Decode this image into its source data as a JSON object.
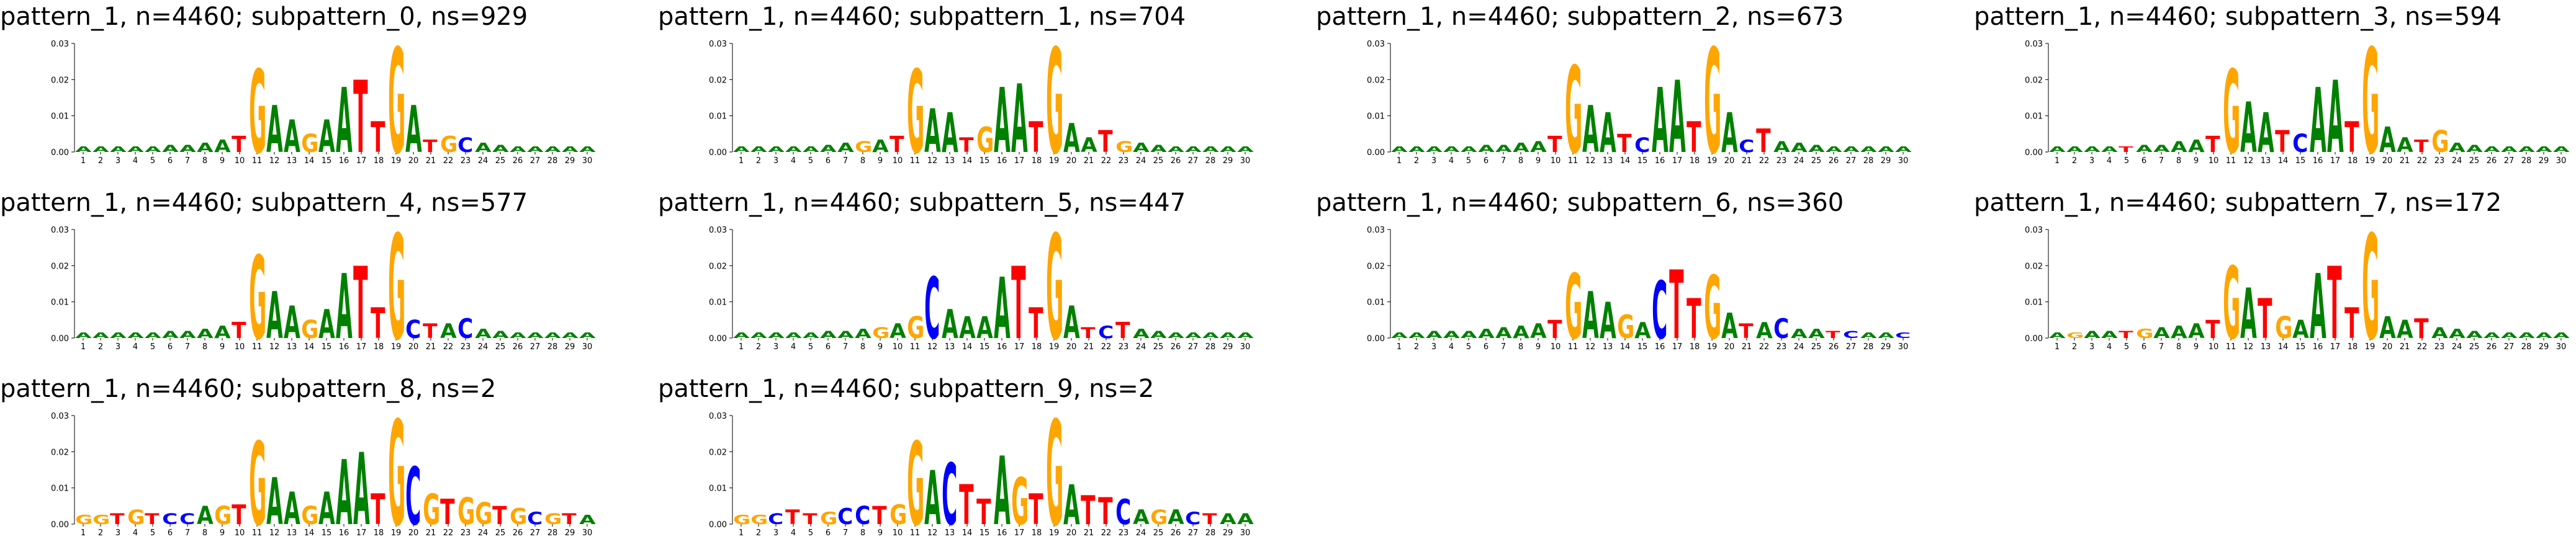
{
  "figure": {
    "colors": {
      "A": "#008000",
      "C": "#0000ff",
      "G": "#ffa500",
      "T": "#ff0000",
      "axis": "#000000"
    }
  },
  "chart_data": [
    {
      "type": "sequence-logo",
      "title": "pattern_1, n=4460; subpattern_0, ns=929",
      "x": [
        1,
        2,
        3,
        4,
        5,
        6,
        7,
        8,
        9,
        10,
        11,
        12,
        13,
        14,
        15,
        16,
        17,
        18,
        19,
        20,
        21,
        22,
        23,
        24,
        25,
        26,
        27,
        28,
        29,
        30
      ],
      "ylim": [
        0,
        0.03
      ],
      "yticks": [
        "0.00",
        "0.01",
        "0.02",
        "0.03"
      ],
      "letters": [
        "A",
        "A",
        "A",
        "A",
        "A",
        "A",
        "A",
        "A",
        "A",
        "T",
        "G",
        "A",
        "A",
        "G",
        "A",
        "A",
        "T",
        "T",
        "G",
        "A",
        "T",
        "G",
        "C",
        "A",
        "A",
        "A",
        "A",
        "A",
        "A",
        "A"
      ],
      "heights": [
        0.0015,
        0.0015,
        0.0015,
        0.0015,
        0.0015,
        0.002,
        0.002,
        0.0025,
        0.0035,
        0.0045,
        0.023,
        0.013,
        0.009,
        0.005,
        0.009,
        0.018,
        0.02,
        0.0085,
        0.029,
        0.013,
        0.0035,
        0.0045,
        0.004,
        0.0025,
        0.002,
        0.0015,
        0.0015,
        0.0015,
        0.0015,
        0.0015
      ]
    },
    {
      "type": "sequence-logo",
      "title": "pattern_1, n=4460; subpattern_1, ns=704",
      "x": [
        1,
        2,
        3,
        4,
        5,
        6,
        7,
        8,
        9,
        10,
        11,
        12,
        13,
        14,
        15,
        16,
        17,
        18,
        19,
        20,
        21,
        22,
        23,
        24,
        25,
        26,
        27,
        28,
        29,
        30
      ],
      "ylim": [
        0,
        0.03
      ],
      "yticks": [
        "0.00",
        "0.01",
        "0.02",
        "0.03"
      ],
      "letters": [
        "A",
        "A",
        "A",
        "A",
        "A",
        "A",
        "A",
        "G",
        "A",
        "T",
        "G",
        "A",
        "A",
        "T",
        "G",
        "A",
        "A",
        "T",
        "G",
        "A",
        "A",
        "T",
        "G",
        "A",
        "A",
        "A",
        "A",
        "A",
        "A",
        "A"
      ],
      "heights": [
        0.0015,
        0.0015,
        0.0015,
        0.0015,
        0.0015,
        0.002,
        0.0025,
        0.003,
        0.0035,
        0.0045,
        0.023,
        0.012,
        0.011,
        0.004,
        0.007,
        0.018,
        0.019,
        0.0085,
        0.029,
        0.008,
        0.004,
        0.006,
        0.003,
        0.0025,
        0.002,
        0.0015,
        0.0015,
        0.0015,
        0.0015,
        0.0015
      ]
    },
    {
      "type": "sequence-logo",
      "title": "pattern_1, n=4460; subpattern_2, ns=673",
      "x": [
        1,
        2,
        3,
        4,
        5,
        6,
        7,
        8,
        9,
        10,
        11,
        12,
        13,
        14,
        15,
        16,
        17,
        18,
        19,
        20,
        21,
        22,
        23,
        24,
        25,
        26,
        27,
        28,
        29,
        30
      ],
      "ylim": [
        0,
        0.03
      ],
      "yticks": [
        "0.00",
        "0.01",
        "0.02",
        "0.03"
      ],
      "letters": [
        "A",
        "A",
        "A",
        "A",
        "A",
        "A",
        "A",
        "A",
        "A",
        "T",
        "G",
        "A",
        "A",
        "T",
        "C",
        "A",
        "A",
        "T",
        "G",
        "A",
        "C",
        "T",
        "A",
        "A",
        "A",
        "A",
        "A",
        "A",
        "A",
        "A"
      ],
      "heights": [
        0.0015,
        0.0015,
        0.0015,
        0.0015,
        0.0015,
        0.002,
        0.002,
        0.0025,
        0.003,
        0.0045,
        0.024,
        0.013,
        0.011,
        0.005,
        0.004,
        0.018,
        0.02,
        0.0085,
        0.029,
        0.011,
        0.0035,
        0.0065,
        0.003,
        0.0025,
        0.002,
        0.0015,
        0.0015,
        0.0015,
        0.0015,
        0.0015
      ]
    },
    {
      "type": "sequence-logo",
      "title": "pattern_1, n=4460; subpattern_3, ns=594",
      "x": [
        1,
        2,
        3,
        4,
        5,
        6,
        7,
        8,
        9,
        10,
        11,
        12,
        13,
        14,
        15,
        16,
        17,
        18,
        19,
        20,
        21,
        22,
        23,
        24,
        25,
        26,
        27,
        28,
        29,
        30
      ],
      "ylim": [
        0,
        0.03
      ],
      "yticks": [
        "0.00",
        "0.01",
        "0.02",
        "0.03"
      ],
      "letters": [
        "A",
        "A",
        "A",
        "A",
        "T",
        "A",
        "A",
        "A",
        "A",
        "T",
        "G",
        "A",
        "A",
        "T",
        "C",
        "A",
        "A",
        "T",
        "G",
        "A",
        "A",
        "T",
        "G",
        "A",
        "A",
        "A",
        "A",
        "A",
        "A",
        "A"
      ],
      "heights": [
        0.0015,
        0.0015,
        0.0015,
        0.0015,
        0.0015,
        0.002,
        0.002,
        0.003,
        0.0035,
        0.0045,
        0.023,
        0.014,
        0.011,
        0.006,
        0.005,
        0.018,
        0.02,
        0.0085,
        0.029,
        0.007,
        0.004,
        0.0035,
        0.006,
        0.0025,
        0.002,
        0.0015,
        0.0015,
        0.0015,
        0.0015,
        0.0015
      ]
    },
    {
      "type": "sequence-logo",
      "title": "pattern_1, n=4460; subpattern_4, ns=577",
      "x": [
        1,
        2,
        3,
        4,
        5,
        6,
        7,
        8,
        9,
        10,
        11,
        12,
        13,
        14,
        15,
        16,
        17,
        18,
        19,
        20,
        21,
        22,
        23,
        24,
        25,
        26,
        27,
        28,
        29,
        30
      ],
      "ylim": [
        0,
        0.03
      ],
      "yticks": [
        "0.00",
        "0.01",
        "0.02",
        "0.03"
      ],
      "letters": [
        "A",
        "A",
        "A",
        "A",
        "A",
        "A",
        "A",
        "A",
        "A",
        "T",
        "G",
        "A",
        "A",
        "G",
        "A",
        "A",
        "T",
        "T",
        "G",
        "C",
        "T",
        "A",
        "C",
        "A",
        "A",
        "A",
        "A",
        "A",
        "A",
        "A"
      ],
      "heights": [
        0.0015,
        0.0015,
        0.0015,
        0.0015,
        0.0015,
        0.002,
        0.002,
        0.0025,
        0.0035,
        0.0045,
        0.023,
        0.013,
        0.009,
        0.005,
        0.008,
        0.018,
        0.02,
        0.0085,
        0.029,
        0.005,
        0.004,
        0.004,
        0.0055,
        0.0025,
        0.002,
        0.0015,
        0.0015,
        0.0015,
        0.0015,
        0.0015
      ]
    },
    {
      "type": "sequence-logo",
      "title": "pattern_1, n=4460; subpattern_5, ns=447",
      "x": [
        1,
        2,
        3,
        4,
        5,
        6,
        7,
        8,
        9,
        10,
        11,
        12,
        13,
        14,
        15,
        16,
        17,
        18,
        19,
        20,
        21,
        22,
        23,
        24,
        25,
        26,
        27,
        28,
        29,
        30
      ],
      "ylim": [
        0,
        0.03
      ],
      "yticks": [
        "0.00",
        "0.01",
        "0.02",
        "0.03"
      ],
      "letters": [
        "A",
        "A",
        "A",
        "A",
        "A",
        "A",
        "A",
        "A",
        "G",
        "A",
        "G",
        "C",
        "A",
        "A",
        "A",
        "A",
        "T",
        "T",
        "G",
        "A",
        "T",
        "C",
        "T",
        "A",
        "A",
        "A",
        "A",
        "A",
        "A",
        "A"
      ],
      "heights": [
        0.0015,
        0.0015,
        0.0015,
        0.0015,
        0.0015,
        0.002,
        0.002,
        0.0025,
        0.003,
        0.004,
        0.006,
        0.017,
        0.008,
        0.006,
        0.006,
        0.017,
        0.02,
        0.0085,
        0.029,
        0.009,
        0.003,
        0.0035,
        0.0045,
        0.0025,
        0.002,
        0.0015,
        0.0015,
        0.0015,
        0.0015,
        0.0015
      ]
    },
    {
      "type": "sequence-logo",
      "title": "pattern_1, n=4460; subpattern_6, ns=360",
      "x": [
        1,
        2,
        3,
        4,
        5,
        6,
        7,
        8,
        9,
        10,
        11,
        12,
        13,
        14,
        15,
        16,
        17,
        18,
        19,
        20,
        21,
        22,
        23,
        24,
        25,
        26,
        27,
        28,
        29,
        30
      ],
      "ylim": [
        0,
        0.03
      ],
      "yticks": [
        "0.00",
        "0.01",
        "0.02",
        "0.03"
      ],
      "letters": [
        "A",
        "A",
        "A",
        "A",
        "A",
        "A",
        "A",
        "A",
        "A",
        "T",
        "G",
        "A",
        "A",
        "G",
        "A",
        "C",
        "T",
        "T",
        "G",
        "A",
        "T",
        "A",
        "C",
        "A",
        "A",
        "T",
        "C",
        "A",
        "A",
        "C"
      ],
      "heights": [
        0.0015,
        0.0015,
        0.002,
        0.002,
        0.002,
        0.0025,
        0.003,
        0.0035,
        0.004,
        0.005,
        0.018,
        0.013,
        0.01,
        0.0065,
        0.0045,
        0.016,
        0.019,
        0.011,
        0.0175,
        0.007,
        0.004,
        0.0045,
        0.0055,
        0.0025,
        0.0025,
        0.002,
        0.002,
        0.0015,
        0.0015,
        0.0015
      ]
    },
    {
      "type": "sequence-logo",
      "title": "pattern_1, n=4460; subpattern_7, ns=172",
      "x": [
        1,
        2,
        3,
        4,
        5,
        6,
        7,
        8,
        9,
        10,
        11,
        12,
        13,
        14,
        15,
        16,
        17,
        18,
        19,
        20,
        21,
        22,
        23,
        24,
        25,
        26,
        27,
        28,
        29,
        30
      ],
      "ylim": [
        0,
        0.03
      ],
      "yticks": [
        "0.00",
        "0.01",
        "0.02",
        "0.03"
      ],
      "letters": [
        "A",
        "G",
        "A",
        "A",
        "T",
        "G",
        "A",
        "A",
        "A",
        "T",
        "G",
        "A",
        "T",
        "G",
        "A",
        "A",
        "T",
        "T",
        "G",
        "A",
        "A",
        "T",
        "A",
        "A",
        "A",
        "A",
        "A",
        "A",
        "A",
        "A"
      ],
      "heights": [
        0.0015,
        0.0015,
        0.002,
        0.002,
        0.002,
        0.0025,
        0.003,
        0.0035,
        0.004,
        0.005,
        0.02,
        0.014,
        0.011,
        0.006,
        0.005,
        0.018,
        0.02,
        0.0085,
        0.029,
        0.006,
        0.005,
        0.0055,
        0.003,
        0.0025,
        0.002,
        0.0015,
        0.0015,
        0.0015,
        0.0015,
        0.0015
      ]
    },
    {
      "type": "sequence-logo",
      "title": "pattern_1, n=4460; subpattern_8, ns=2",
      "x": [
        1,
        2,
        3,
        4,
        5,
        6,
        7,
        8,
        9,
        10,
        11,
        12,
        13,
        14,
        15,
        16,
        17,
        18,
        19,
        20,
        21,
        22,
        23,
        24,
        25,
        26,
        27,
        28,
        29,
        30
      ],
      "ylim": [
        0,
        0.03
      ],
      "yticks": [
        "0.00",
        "0.01",
        "0.02",
        "0.03"
      ],
      "letters": [
        "G",
        "G",
        "T",
        "G",
        "T",
        "C",
        "C",
        "A",
        "G",
        "T",
        "G",
        "A",
        "A",
        "G",
        "A",
        "A",
        "A",
        "T",
        "G",
        "C",
        "G",
        "T",
        "G",
        "G",
        "T",
        "G",
        "C",
        "G",
        "T",
        "A"
      ],
      "heights": [
        0.0025,
        0.0025,
        0.003,
        0.004,
        0.003,
        0.003,
        0.003,
        0.005,
        0.005,
        0.0055,
        0.023,
        0.013,
        0.009,
        0.005,
        0.009,
        0.018,
        0.02,
        0.0085,
        0.029,
        0.016,
        0.0085,
        0.007,
        0.0075,
        0.006,
        0.005,
        0.0045,
        0.0035,
        0.003,
        0.003,
        0.0025
      ]
    },
    {
      "type": "sequence-logo",
      "title": "pattern_1, n=4460; subpattern_9, ns=2",
      "x": [
        1,
        2,
        3,
        4,
        5,
        6,
        7,
        8,
        9,
        10,
        11,
        12,
        13,
        14,
        15,
        16,
        17,
        18,
        19,
        20,
        21,
        22,
        23,
        24,
        25,
        26,
        27,
        28,
        29,
        30
      ],
      "ylim": [
        0,
        0.03
      ],
      "yticks": [
        "0.00",
        "0.01",
        "0.02",
        "0.03"
      ],
      "letters": [
        "G",
        "G",
        "C",
        "T",
        "T",
        "G",
        "C",
        "C",
        "T",
        "G",
        "G",
        "A",
        "C",
        "T",
        "T",
        "A",
        "G",
        "T",
        "G",
        "A",
        "T",
        "T",
        "C",
        "A",
        "G",
        "A",
        "C",
        "T",
        "A",
        "A"
      ],
      "heights": [
        0.0025,
        0.0025,
        0.003,
        0.004,
        0.003,
        0.0035,
        0.0045,
        0.005,
        0.005,
        0.0055,
        0.023,
        0.015,
        0.017,
        0.011,
        0.007,
        0.019,
        0.013,
        0.0085,
        0.029,
        0.011,
        0.008,
        0.0075,
        0.007,
        0.004,
        0.004,
        0.004,
        0.0035,
        0.003,
        0.003,
        0.003
      ]
    }
  ]
}
